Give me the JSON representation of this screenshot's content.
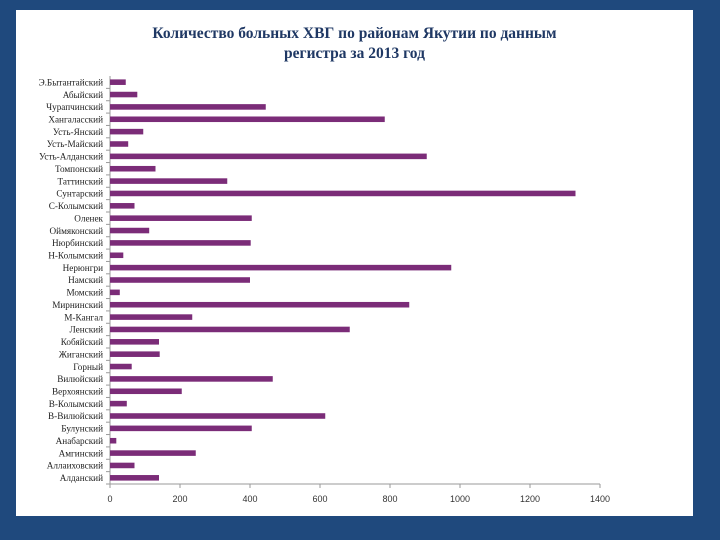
{
  "chart_data": {
    "type": "bar",
    "orientation": "horizontal",
    "title_line1": "Количество больных ХВГ по районам Якутии по данным",
    "title_line2": "регистра за 2013 год",
    "xlabel": "",
    "ylabel": "",
    "xlim": [
      0,
      1400
    ],
    "xticks": [
      0,
      200,
      400,
      600,
      800,
      1000,
      1200,
      1400
    ],
    "grid": false,
    "legend": "none",
    "bar_color": "#7b2c78",
    "categories": [
      "Алданский",
      "Аллаиховский",
      "Амгинский",
      "Анабарский",
      "Булунский",
      "В-Вилюйский",
      "В-Колымский",
      "Верхоянский",
      "Вилюйский",
      "Горный",
      "Жиганский",
      "Кобяйский",
      "Ленский",
      "М-Кангал",
      "Мирнинский",
      "Момский",
      "Намский",
      "Нерюнгри",
      "Н-Колымский",
      "Нюрбинский",
      "Оймяконский",
      "Оленек",
      "С-Колымский",
      "Сунтарский",
      "Таттинский",
      "Томпонский",
      "Усть-Алданский",
      "Усть-Майский",
      "Усть-Янский",
      "Хангаласский",
      "Чурапчинский",
      "Абыйский",
      "Э.Бытантайский"
    ],
    "values": [
      140,
      70,
      245,
      18,
      405,
      615,
      48,
      205,
      465,
      62,
      142,
      140,
      685,
      235,
      855,
      28,
      400,
      975,
      38,
      402,
      112,
      405,
      70,
      1330,
      335,
      130,
      905,
      52,
      95,
      785,
      445,
      78,
      45
    ]
  }
}
